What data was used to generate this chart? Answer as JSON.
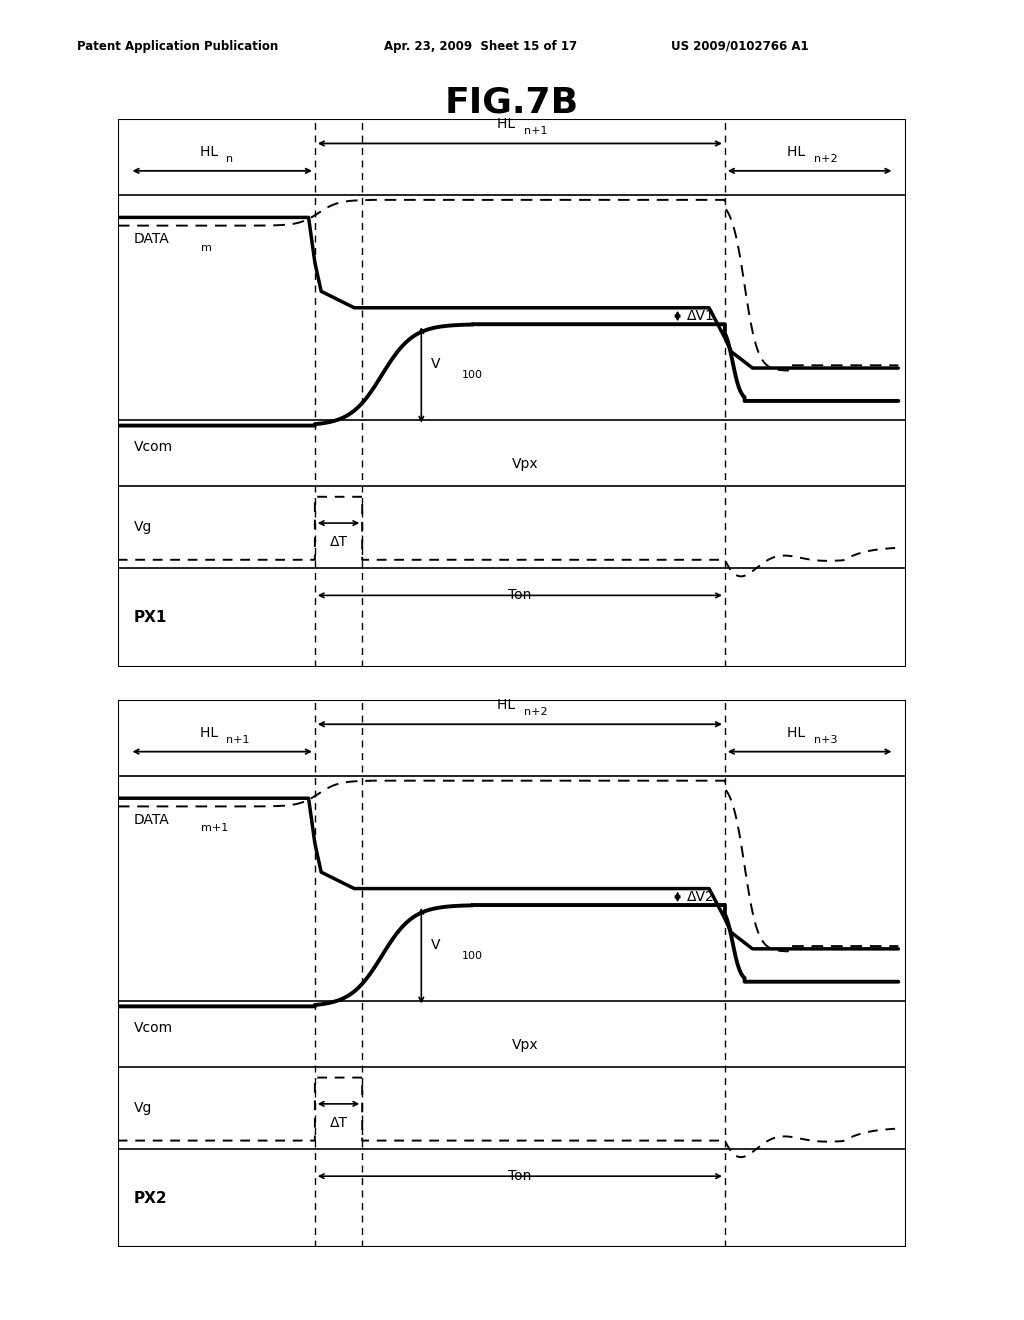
{
  "fig_title": "FIG.7B",
  "patent_header_left": "Patent Application Publication",
  "patent_header_mid": "Apr. 23, 2009  Sheet 15 of 17",
  "patent_header_right": "US 2009/0102766 A1",
  "background": "#ffffff",
  "panel1": {
    "HL_labels_main": [
      "HL",
      "HL",
      "HL"
    ],
    "HL_labels_sub": [
      "n",
      "n+1",
      "n+2"
    ],
    "data_label_main": "DATA",
    "data_label_sub": "m",
    "vcom_label": "Vcom",
    "vg_label": "Vg",
    "px_label": "PX1",
    "delta_v_label": "ΔV1",
    "v100_label": "V",
    "v100_sub": "100",
    "vpx_label": "Vpx",
    "delta_t_label": "ΔT",
    "ton_label": "Ton"
  },
  "panel2": {
    "HL_labels_main": [
      "HL",
      "HL",
      "HL"
    ],
    "HL_labels_sub": [
      "n+1",
      "n+2",
      "n+3"
    ],
    "data_label_main": "DATA",
    "data_label_sub": "m+1",
    "vcom_label": "Vcom",
    "vg_label": "Vg",
    "px_label": "PX2",
    "delta_v_label": "ΔV2",
    "v100_label": "V",
    "v100_sub": "100",
    "vpx_label": "Vpx",
    "delta_t_label": "ΔT",
    "ton_label": "Ton"
  }
}
